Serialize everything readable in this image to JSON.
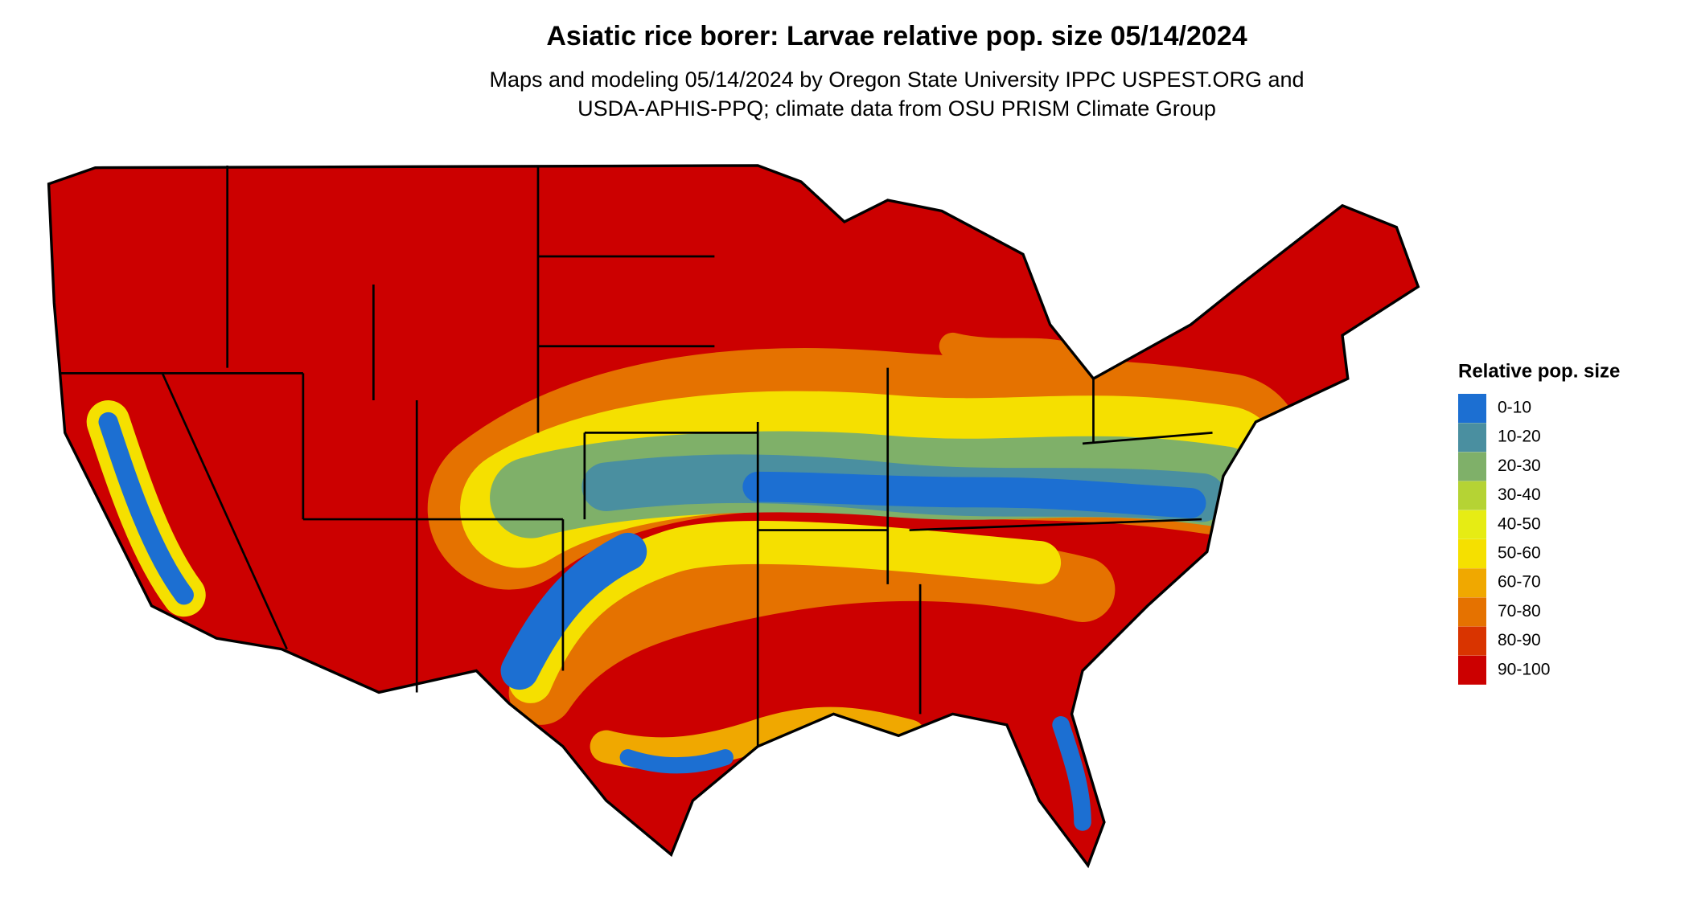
{
  "title": "Asiatic rice borer: Larvae relative pop. size 05/14/2024",
  "subtitle": [
    "Maps and modeling 05/14/2024 by Oregon State University IPPC USPEST.ORG and",
    "USDA-APHIS-PPQ; climate data from OSU PRISM Climate Group"
  ],
  "legend": {
    "title": "Relative pop. size",
    "items": [
      {
        "label": "0-10",
        "color": "#1c6fd2"
      },
      {
        "label": "10-20",
        "color": "#4a8fa0"
      },
      {
        "label": "20-30",
        "color": "#7fb069"
      },
      {
        "label": "30-40",
        "color": "#b5d334"
      },
      {
        "label": "40-50",
        "color": "#e6ec14"
      },
      {
        "label": "50-60",
        "color": "#f5e000"
      },
      {
        "label": "60-70",
        "color": "#f0a800"
      },
      {
        "label": "70-80",
        "color": "#e57200"
      },
      {
        "label": "80-90",
        "color": "#d93400"
      },
      {
        "label": "90-100",
        "color": "#cc0000"
      }
    ]
  }
}
